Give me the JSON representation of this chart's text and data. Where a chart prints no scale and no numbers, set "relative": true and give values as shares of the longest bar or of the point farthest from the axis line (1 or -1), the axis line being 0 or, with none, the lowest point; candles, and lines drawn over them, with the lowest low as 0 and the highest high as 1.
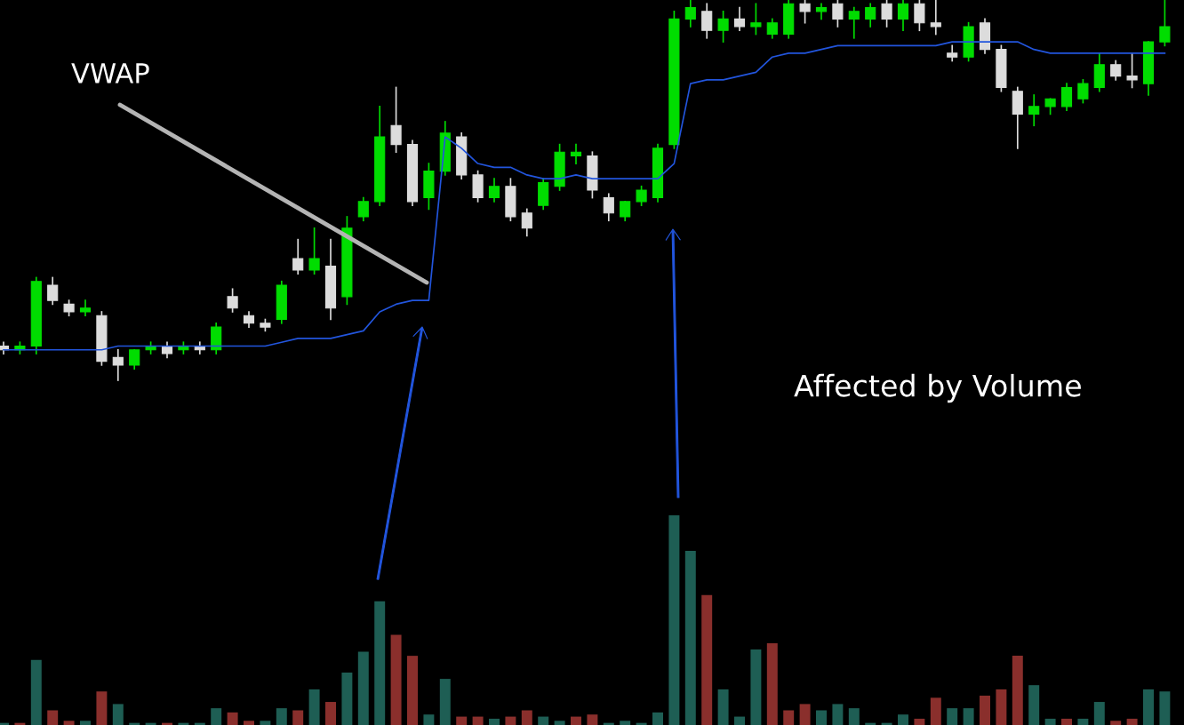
{
  "chart_data": [
    {
      "type": "candlestick",
      "relative": true,
      "tick_labels": false,
      "grid": false,
      "legend": false,
      "categories": [
        null,
        null,
        null,
        null,
        null,
        null,
        null,
        null,
        null,
        null,
        null,
        null,
        null,
        null,
        null,
        null,
        null,
        null,
        null,
        null,
        null,
        null,
        null,
        null,
        null,
        null,
        null,
        null,
        null,
        null,
        null,
        null,
        null,
        null,
        null,
        null,
        null,
        null,
        null,
        null,
        null,
        null,
        null,
        null,
        null,
        null,
        null,
        null,
        null,
        null,
        null,
        null,
        null,
        null,
        null,
        null,
        null,
        null,
        null,
        null,
        null,
        null,
        null,
        null,
        null,
        null,
        null,
        null,
        null,
        null,
        null,
        null
      ],
      "ohlc": [
        [
          0.09,
          0.1,
          0.07,
          0.08
        ],
        [
          0.08,
          0.1,
          0.07,
          0.09
        ],
        [
          0.09,
          0.27,
          0.07,
          0.26
        ],
        [
          0.25,
          0.27,
          0.2,
          0.21
        ],
        [
          0.2,
          0.21,
          0.17,
          0.18
        ],
        [
          0.18,
          0.21,
          0.17,
          0.19
        ],
        [
          0.17,
          0.18,
          0.04,
          0.05
        ],
        [
          0.06,
          0.08,
          0.0,
          0.04
        ],
        [
          0.04,
          0.08,
          0.03,
          0.08
        ],
        [
          0.08,
          0.1,
          0.07,
          0.09
        ],
        [
          0.09,
          0.1,
          0.06,
          0.07
        ],
        [
          0.08,
          0.1,
          0.07,
          0.09
        ],
        [
          0.09,
          0.1,
          0.07,
          0.08
        ],
        [
          0.08,
          0.15,
          0.07,
          0.14
        ],
        [
          0.22,
          0.24,
          0.18,
          0.19
        ],
        [
          0.17,
          0.18,
          0.14,
          0.15
        ],
        [
          0.15,
          0.16,
          0.13,
          0.14
        ],
        [
          0.16,
          0.26,
          0.15,
          0.25
        ],
        [
          0.32,
          0.37,
          0.28,
          0.29
        ],
        [
          0.29,
          0.4,
          0.28,
          0.32
        ],
        [
          0.3,
          0.37,
          0.16,
          0.19
        ],
        [
          0.22,
          0.43,
          0.2,
          0.4
        ],
        [
          0.43,
          0.48,
          0.42,
          0.47
        ],
        [
          0.47,
          0.72,
          0.46,
          0.64
        ],
        [
          0.67,
          0.77,
          0.6,
          0.62
        ],
        [
          0.62,
          0.63,
          0.46,
          0.47
        ],
        [
          0.48,
          0.57,
          0.45,
          0.55
        ],
        [
          0.55,
          0.68,
          0.54,
          0.65
        ],
        [
          0.64,
          0.65,
          0.53,
          0.54
        ],
        [
          0.54,
          0.55,
          0.47,
          0.48
        ],
        [
          0.48,
          0.53,
          0.47,
          0.51
        ],
        [
          0.51,
          0.53,
          0.42,
          0.43
        ],
        [
          0.44,
          0.45,
          0.38,
          0.4
        ],
        [
          0.46,
          0.53,
          0.45,
          0.52
        ],
        [
          0.51,
          0.62,
          0.5,
          0.6
        ],
        [
          0.59,
          0.62,
          0.57,
          0.6
        ],
        [
          0.59,
          0.6,
          0.48,
          0.5
        ],
        [
          0.48,
          0.49,
          0.42,
          0.44
        ],
        [
          0.43,
          0.47,
          0.42,
          0.47
        ],
        [
          0.47,
          0.51,
          0.46,
          0.5
        ],
        [
          0.48,
          0.62,
          0.47,
          0.61
        ],
        [
          0.62,
          0.97,
          0.61,
          0.95
        ],
        [
          0.95,
          1.0,
          0.93,
          0.98
        ],
        [
          0.97,
          0.99,
          0.9,
          0.92
        ],
        [
          0.92,
          0.97,
          0.89,
          0.95
        ],
        [
          0.95,
          0.98,
          0.92,
          0.93
        ],
        [
          0.93,
          0.99,
          0.91,
          0.94
        ],
        [
          0.91,
          0.95,
          0.9,
          0.94
        ],
        [
          0.91,
          1.0,
          0.9,
          0.99
        ],
        [
          0.99,
          1.0,
          0.94,
          0.97
        ],
        [
          0.97,
          0.99,
          0.95,
          0.98
        ],
        [
          0.99,
          1.0,
          0.93,
          0.95
        ],
        [
          0.95,
          0.98,
          0.9,
          0.97
        ],
        [
          0.95,
          0.99,
          0.93,
          0.98
        ],
        [
          0.99,
          1.0,
          0.93,
          0.95
        ],
        [
          0.95,
          1.0,
          0.92,
          0.99
        ],
        [
          0.99,
          1.0,
          0.92,
          0.94
        ],
        [
          0.94,
          1.0,
          0.91,
          0.93
        ],
        [
          0.86,
          0.88,
          0.84,
          0.85
        ],
        [
          0.85,
          0.94,
          0.84,
          0.93
        ],
        [
          0.94,
          0.95,
          0.86,
          0.87
        ],
        [
          0.87,
          0.88,
          0.76,
          0.77
        ],
        [
          0.76,
          0.77,
          0.61,
          0.7
        ],
        [
          0.7,
          0.75,
          0.67,
          0.72
        ],
        [
          0.72,
          0.74,
          0.7,
          0.74
        ],
        [
          0.72,
          0.78,
          0.71,
          0.77
        ],
        [
          0.74,
          0.79,
          0.73,
          0.78
        ],
        [
          0.77,
          0.86,
          0.76,
          0.83
        ],
        [
          0.83,
          0.84,
          0.79,
          0.8
        ],
        [
          0.8,
          0.86,
          0.77,
          0.79
        ],
        [
          0.78,
          0.89,
          0.75,
          0.89
        ],
        [
          0.89,
          1.0,
          0.88,
          0.93
        ]
      ],
      "colors": [
        "#dcdcdc",
        "#00dd00",
        "#00dd00",
        "#dcdcdc",
        "#dcdcdc",
        "#00dd00",
        "#dcdcdc",
        "#dcdcdc",
        "#00dd00",
        "#00dd00",
        "#dcdcdc",
        "#00dd00",
        "#dcdcdc",
        "#00dd00",
        "#dcdcdc",
        "#dcdcdc",
        "#dcdcdc",
        "#00dd00",
        "#dcdcdc",
        "#00dd00",
        "#dcdcdc",
        "#00dd00",
        "#00dd00",
        "#00dd00",
        "#dcdcdc",
        "#dcdcdc",
        "#00dd00",
        "#00dd00",
        "#dcdcdc",
        "#dcdcdc",
        "#00dd00",
        "#dcdcdc",
        "#dcdcdc",
        "#00dd00",
        "#00dd00",
        "#00dd00",
        "#dcdcdc",
        "#dcdcdc",
        "#00dd00",
        "#00dd00",
        "#00dd00",
        "#00dd00",
        "#00dd00",
        "#dcdcdc",
        "#00dd00",
        "#dcdcdc",
        "#00dd00",
        "#00dd00",
        "#00dd00",
        "#dcdcdc",
        "#00dd00",
        "#dcdcdc",
        "#00dd00",
        "#00dd00",
        "#dcdcdc",
        "#00dd00",
        "#dcdcdc",
        "#dcdcdc",
        "#dcdcdc",
        "#00dd00",
        "#dcdcdc",
        "#dcdcdc",
        "#dcdcdc",
        "#00dd00",
        "#00dd00",
        "#00dd00",
        "#00dd00",
        "#00dd00",
        "#dcdcdc",
        "#dcdcdc",
        "#00dd00",
        "#00dd00"
      ],
      "series": [
        {
          "type": "line",
          "name": "VWAP",
          "color": "#2255dd",
          "values": [
            0.08,
            0.08,
            0.08,
            0.08,
            0.08,
            0.08,
            0.08,
            0.09,
            0.09,
            0.09,
            0.09,
            0.09,
            0.09,
            0.09,
            0.09,
            0.09,
            0.09,
            0.1,
            0.11,
            0.11,
            0.11,
            0.12,
            0.13,
            0.18,
            0.2,
            0.21,
            0.21,
            0.64,
            0.61,
            0.57,
            0.56,
            0.56,
            0.54,
            0.53,
            0.53,
            0.54,
            0.53,
            0.53,
            0.53,
            0.53,
            0.53,
            0.57,
            0.78,
            0.79,
            0.79,
            0.8,
            0.81,
            0.85,
            0.86,
            0.86,
            0.87,
            0.88,
            0.88,
            0.88,
            0.88,
            0.88,
            0.88,
            0.88,
            0.89,
            0.89,
            0.89,
            0.89,
            0.89,
            0.87,
            0.86,
            0.86,
            0.86,
            0.86,
            0.86,
            0.86,
            0.86,
            0.86
          ]
        }
      ],
      "annotations": [
        "Affected by Volume"
      ]
    },
    {
      "type": "bar",
      "relative": true,
      "tick_labels": false,
      "grid": false,
      "categories": [
        null,
        null,
        null,
        null,
        null,
        null,
        null,
        null,
        null,
        null,
        null,
        null,
        null,
        null,
        null,
        null,
        null,
        null,
        null,
        null,
        null,
        null,
        null,
        null,
        null,
        null,
        null,
        null,
        null,
        null,
        null,
        null,
        null,
        null,
        null,
        null,
        null,
        null,
        null,
        null,
        null,
        null,
        null,
        null,
        null,
        null,
        null,
        null,
        null,
        null,
        null,
        null,
        null,
        null,
        null,
        null,
        null,
        null,
        null,
        null,
        null,
        null,
        null,
        null,
        null,
        null,
        null,
        null,
        null,
        null,
        null,
        null
      ],
      "values": [
        0.01,
        0.01,
        0.31,
        0.07,
        0.02,
        0.02,
        0.16,
        0.1,
        0.01,
        0.01,
        0.01,
        0.01,
        0.01,
        0.08,
        0.06,
        0.02,
        0.02,
        0.08,
        0.07,
        0.17,
        0.11,
        0.25,
        0.35,
        0.59,
        0.43,
        0.33,
        0.05,
        0.22,
        0.04,
        0.04,
        0.03,
        0.04,
        0.07,
        0.04,
        0.02,
        0.04,
        0.05,
        0.01,
        0.02,
        0.01,
        0.06,
        1,
        0.83,
        0.62,
        0.17,
        0.04,
        0.36,
        0.39,
        0.07,
        0.1,
        0.07,
        0.1,
        0.08,
        0.01,
        0.01,
        0.05,
        0.03,
        0.13,
        0.08,
        0.08,
        0.14,
        0.17,
        0.33,
        0.19,
        0.03,
        0.03,
        0.03,
        0.11,
        0.02,
        0.03,
        0.17,
        0.16
      ],
      "colors": [
        "#1e5e54",
        "#8a2f2c",
        "#1e5e54",
        "#8a2f2c",
        "#8a2f2c",
        "#1e5e54",
        "#8a2f2c",
        "#1e5e54",
        "#1e5e54",
        "#1e5e54",
        "#8a2f2c",
        "#1e5e54",
        "#1e5e54",
        "#1e5e54",
        "#8a2f2c",
        "#8a2f2c",
        "#1e5e54",
        "#1e5e54",
        "#8a2f2c",
        "#1e5e54",
        "#8a2f2c",
        "#1e5e54",
        "#1e5e54",
        "#1e5e54",
        "#8a2f2c",
        "#8a2f2c",
        "#1e5e54",
        "#1e5e54",
        "#8a2f2c",
        "#8a2f2c",
        "#1e5e54",
        "#8a2f2c",
        "#8a2f2c",
        "#1e5e54",
        "#1e5e54",
        "#8a2f2c",
        "#8a2f2c",
        "#1e5e54",
        "#1e5e54",
        "#1e5e54",
        "#1e5e54",
        "#1e5e54",
        "#1e5e54",
        "#8a2f2c",
        "#1e5e54",
        "#1e5e54",
        "#1e5e54",
        "#8a2f2c",
        "#8a2f2c",
        "#8a2f2c",
        "#1e5e54",
        "#1e5e54",
        "#1e5e54",
        "#1e5e54",
        "#1e5e54",
        "#1e5e54",
        "#8a2f2c",
        "#8a2f2c",
        "#1e5e54",
        "#1e5e54",
        "#8a2f2c",
        "#8a2f2c",
        "#8a2f2c",
        "#1e5e54",
        "#1e5e54",
        "#8a2f2c",
        "#1e5e54",
        "#1e5e54",
        "#8a2f2c",
        "#8a2f2c",
        "#1e5e54",
        "#1e5e54"
      ]
    }
  ]
}
